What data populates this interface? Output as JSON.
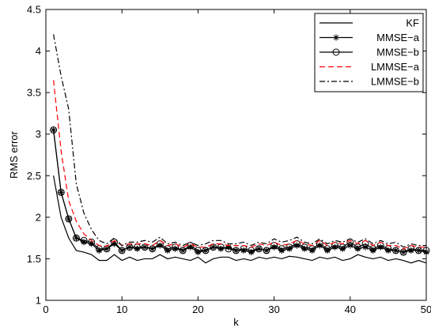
{
  "chart_data": {
    "type": "line",
    "title": "",
    "xlabel": "k",
    "ylabel": "RMS error",
    "xlim": [
      0,
      50
    ],
    "ylim": [
      1,
      4.5
    ],
    "x_ticks": [
      0,
      10,
      20,
      30,
      40,
      50
    ],
    "y_ticks": [
      1,
      1.5,
      2,
      2.5,
      3,
      3.5,
      4,
      4.5
    ],
    "grid": false,
    "legend_position": "top-right",
    "x": [
      1,
      2,
      3,
      4,
      5,
      6,
      7,
      8,
      9,
      10,
      11,
      12,
      13,
      14,
      15,
      16,
      17,
      18,
      19,
      20,
      21,
      22,
      23,
      24,
      25,
      26,
      27,
      28,
      29,
      30,
      31,
      32,
      33,
      34,
      35,
      36,
      37,
      38,
      39,
      40,
      41,
      42,
      43,
      44,
      45,
      46,
      47,
      48,
      49,
      50
    ],
    "series": [
      {
        "name": "KF",
        "color": "#000000",
        "style": "solid",
        "marker": "none",
        "values": [
          2.5,
          2.0,
          1.75,
          1.6,
          1.58,
          1.55,
          1.48,
          1.48,
          1.55,
          1.48,
          1.52,
          1.48,
          1.5,
          1.5,
          1.55,
          1.5,
          1.52,
          1.5,
          1.48,
          1.52,
          1.45,
          1.5,
          1.52,
          1.52,
          1.48,
          1.5,
          1.48,
          1.52,
          1.5,
          1.52,
          1.5,
          1.53,
          1.52,
          1.5,
          1.48,
          1.52,
          1.5,
          1.52,
          1.48,
          1.5,
          1.55,
          1.52,
          1.5,
          1.52,
          1.48,
          1.5,
          1.48,
          1.45,
          1.48,
          1.45
        ]
      },
      {
        "name": "MMSE−a",
        "color": "#000000",
        "style": "solid",
        "marker": "star",
        "values": [
          3.05,
          2.3,
          1.98,
          1.75,
          1.7,
          1.68,
          1.6,
          1.62,
          1.68,
          1.6,
          1.64,
          1.62,
          1.64,
          1.62,
          1.66,
          1.6,
          1.62,
          1.6,
          1.64,
          1.58,
          1.6,
          1.64,
          1.62,
          1.64,
          1.6,
          1.6,
          1.58,
          1.62,
          1.6,
          1.64,
          1.6,
          1.62,
          1.66,
          1.62,
          1.6,
          1.66,
          1.6,
          1.64,
          1.62,
          1.66,
          1.62,
          1.64,
          1.6,
          1.64,
          1.6,
          1.6,
          1.58,
          1.6,
          1.6,
          1.58
        ]
      },
      {
        "name": "MMSE−b",
        "color": "#000000",
        "style": "solid",
        "marker": "circle",
        "values": [
          3.05,
          2.3,
          1.98,
          1.75,
          1.72,
          1.7,
          1.62,
          1.62,
          1.7,
          1.6,
          1.64,
          1.64,
          1.64,
          1.62,
          1.68,
          1.62,
          1.64,
          1.6,
          1.66,
          1.6,
          1.6,
          1.64,
          1.64,
          1.62,
          1.6,
          1.62,
          1.6,
          1.62,
          1.6,
          1.66,
          1.62,
          1.64,
          1.68,
          1.64,
          1.62,
          1.68,
          1.62,
          1.66,
          1.64,
          1.7,
          1.64,
          1.68,
          1.62,
          1.66,
          1.62,
          1.6,
          1.58,
          1.62,
          1.6,
          1.6
        ]
      },
      {
        "name": "LMMSE−a",
        "color": "#ff0000",
        "style": "dashed",
        "marker": "none",
        "values": [
          3.65,
          2.8,
          2.2,
          1.95,
          1.8,
          1.72,
          1.66,
          1.65,
          1.72,
          1.66,
          1.68,
          1.68,
          1.68,
          1.66,
          1.72,
          1.66,
          1.68,
          1.64,
          1.68,
          1.64,
          1.64,
          1.68,
          1.68,
          1.66,
          1.66,
          1.66,
          1.64,
          1.68,
          1.66,
          1.7,
          1.66,
          1.68,
          1.72,
          1.68,
          1.66,
          1.72,
          1.66,
          1.7,
          1.68,
          1.72,
          1.68,
          1.72,
          1.66,
          1.7,
          1.66,
          1.66,
          1.62,
          1.66,
          1.64,
          1.64
        ]
      },
      {
        "name": "LMMSE−b",
        "color": "#000000",
        "style": "dashdot",
        "marker": "none",
        "values": [
          4.2,
          3.7,
          3.3,
          2.4,
          2.05,
          1.85,
          1.72,
          1.68,
          1.75,
          1.66,
          1.7,
          1.7,
          1.72,
          1.7,
          1.76,
          1.68,
          1.7,
          1.66,
          1.7,
          1.66,
          1.68,
          1.72,
          1.72,
          1.68,
          1.68,
          1.7,
          1.66,
          1.7,
          1.68,
          1.74,
          1.7,
          1.72,
          1.76,
          1.7,
          1.68,
          1.74,
          1.68,
          1.72,
          1.7,
          1.74,
          1.7,
          1.74,
          1.68,
          1.72,
          1.68,
          1.7,
          1.64,
          1.68,
          1.66,
          1.66
        ]
      }
    ]
  }
}
